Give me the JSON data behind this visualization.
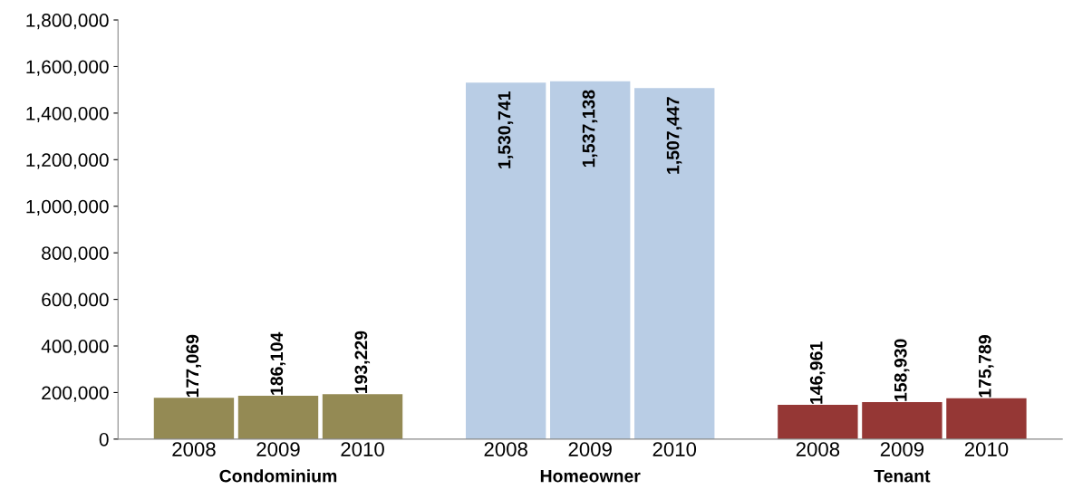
{
  "chart_data": {
    "type": "bar",
    "categories": [
      "2008",
      "2009",
      "2010",
      "2008",
      "2009",
      "2010",
      "2008",
      "2009",
      "2010"
    ],
    "values": [
      177069,
      186104,
      193229,
      1530741,
      1537138,
      1507447,
      146961,
      158930,
      175789
    ],
    "colors": [
      "#948a54",
      "#948a54",
      "#948a54",
      "#b9cde5",
      "#b9cde5",
      "#b9cde5",
      "#953735",
      "#953735",
      "#953735"
    ],
    "annotations": [
      "Condominium",
      "Homeowner",
      "Tenant"
    ],
    "ylim": [
      0,
      1800000
    ],
    "yticks": [
      0,
      {
        "value": 200000,
        "label": "200,000"
      },
      {
        "value": 400000,
        "label": "400,000"
      },
      {
        "value": 600000,
        "label": "600,000"
      },
      {
        "value": 800000,
        "label": "800,000"
      },
      {
        "value": 1000000,
        "label": "1,000,000"
      },
      {
        "value": 1200000,
        "label": "1,200,000"
      },
      {
        "value": 1400000,
        "label": "1,400,000"
      },
      {
        "value": 1600000,
        "label": "1,600,000"
      },
      {
        "value": 1800000,
        "label": "1,800,000"
      }
    ],
    "value_labels": [
      "177,069",
      "186,104",
      "193,229",
      "1,530,741",
      "1,537,138",
      "1,507,447",
      "146,961",
      "158,930",
      "175,789"
    ],
    "grid": false,
    "legend": false
  }
}
